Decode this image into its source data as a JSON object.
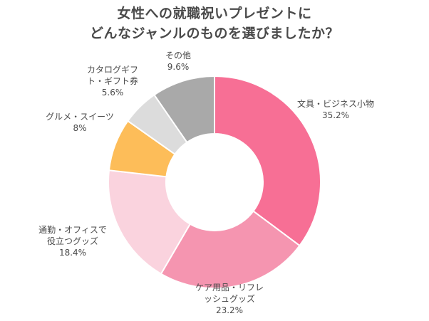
{
  "title": {
    "line1": "女性への就職祝いプレゼントに",
    "line2": "どんなジャンルのものを選びましたか？"
  },
  "chart_data": {
    "type": "pie",
    "donut": true,
    "slices": [
      {
        "label_lines": [
          "文具・ビジネス小物"
        ],
        "value": 35.2,
        "value_label": "35.2%",
        "color": "#F76F95"
      },
      {
        "label_lines": [
          "ケア用品・リフレ",
          "ッシュグッズ"
        ],
        "value": 23.2,
        "value_label": "23.2%",
        "color": "#F595B0"
      },
      {
        "label_lines": [
          "通勤・オフィスで",
          "役立つグッズ"
        ],
        "value": 18.4,
        "value_label": "18.4%",
        "color": "#FAD3DE"
      },
      {
        "label_lines": [
          "グルメ・スイーツ"
        ],
        "value": 8,
        "value_label": "8%",
        "color": "#FDBD59"
      },
      {
        "label_lines": [
          "カタログギフ",
          "ト・ギフト券"
        ],
        "value": 5.6,
        "value_label": "5.6%",
        "color": "#DCDCDC"
      },
      {
        "label_lines": [
          "その他"
        ],
        "value": 9.6,
        "value_label": "9.6%",
        "color": "#A9A9A9"
      }
    ]
  }
}
